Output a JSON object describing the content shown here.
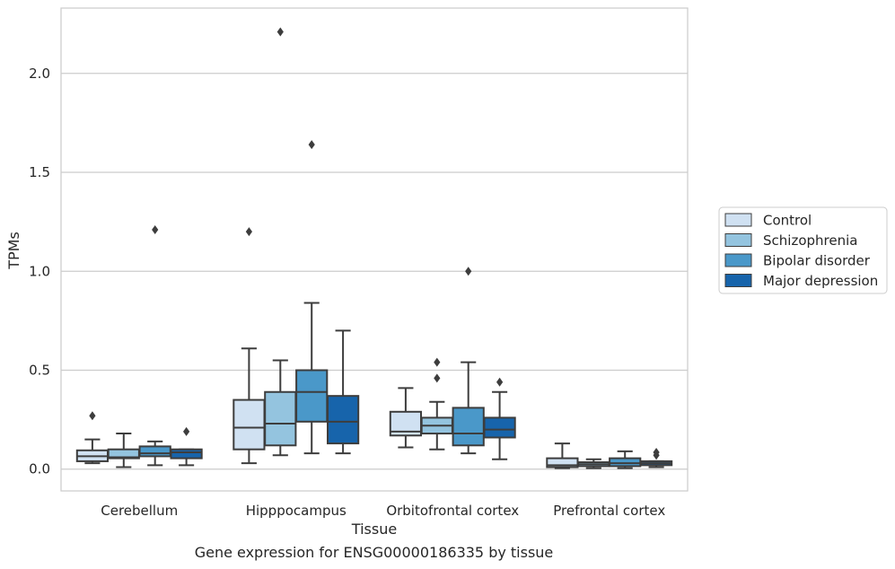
{
  "caption": "Gene expression for ENSG00000186335 by tissue",
  "chart_data": {
    "type": "box",
    "xlabel": "Tissue",
    "ylabel": "TPMs",
    "ylim": [
      -0.11,
      2.33
    ],
    "yticks": [
      0.0,
      0.5,
      1.0,
      1.5,
      2.0
    ],
    "ytick_labels": [
      "0.0",
      "0.5",
      "1.0",
      "1.5",
      "2.0"
    ],
    "grid": "horizontal",
    "legend_placement": "right",
    "categories": [
      "Cerebellum",
      "Hipppocampus",
      "Orbitofrontal cortex",
      "Prefrontal cortex"
    ],
    "series": [
      {
        "name": "Control",
        "color": "#d0e1f2",
        "boxes": [
          {
            "whislo": 0.03,
            "q1": 0.04,
            "med": 0.065,
            "q3": 0.095,
            "whishi": 0.15,
            "fliers": [
              0.27
            ]
          },
          {
            "whislo": 0.03,
            "q1": 0.1,
            "med": 0.21,
            "q3": 0.35,
            "whishi": 0.61,
            "fliers": [
              1.2
            ]
          },
          {
            "whislo": 0.11,
            "q1": 0.17,
            "med": 0.19,
            "q3": 0.29,
            "whishi": 0.41,
            "fliers": []
          },
          {
            "whislo": 0.005,
            "q1": 0.01,
            "med": 0.02,
            "q3": 0.055,
            "whishi": 0.13,
            "fliers": []
          }
        ]
      },
      {
        "name": "Schizophrenia",
        "color": "#94c4df",
        "boxes": [
          {
            "whislo": 0.01,
            "q1": 0.055,
            "med": 0.06,
            "q3": 0.1,
            "whishi": 0.18,
            "fliers": []
          },
          {
            "whislo": 0.07,
            "q1": 0.12,
            "med": 0.23,
            "q3": 0.39,
            "whishi": 0.55,
            "fliers": [
              2.21
            ]
          },
          {
            "whislo": 0.1,
            "q1": 0.18,
            "med": 0.22,
            "q3": 0.26,
            "whishi": 0.34,
            "fliers": [
              0.46,
              0.54
            ]
          },
          {
            "whislo": 0.005,
            "q1": 0.015,
            "med": 0.025,
            "q3": 0.035,
            "whishi": 0.05,
            "fliers": []
          }
        ]
      },
      {
        "name": "Bipolar disorder",
        "color": "#4a98c9",
        "boxes": [
          {
            "whislo": 0.02,
            "q1": 0.065,
            "med": 0.08,
            "q3": 0.115,
            "whishi": 0.14,
            "fliers": [
              1.21
            ]
          },
          {
            "whislo": 0.08,
            "q1": 0.24,
            "med": 0.39,
            "q3": 0.5,
            "whishi": 0.84,
            "fliers": [
              1.64
            ]
          },
          {
            "whislo": 0.08,
            "q1": 0.12,
            "med": 0.18,
            "q3": 0.31,
            "whishi": 0.54,
            "fliers": [
              1.0
            ]
          },
          {
            "whislo": 0.005,
            "q1": 0.015,
            "med": 0.03,
            "q3": 0.055,
            "whishi": 0.09,
            "fliers": []
          }
        ]
      },
      {
        "name": "Major depression",
        "color": "#1764ab",
        "boxes": [
          {
            "whislo": 0.02,
            "q1": 0.055,
            "med": 0.085,
            "q3": 0.1,
            "whishi": 0.1,
            "fliers": [
              0.19
            ]
          },
          {
            "whislo": 0.08,
            "q1": 0.13,
            "med": 0.24,
            "q3": 0.37,
            "whishi": 0.7,
            "fliers": []
          },
          {
            "whislo": 0.05,
            "q1": 0.16,
            "med": 0.2,
            "q3": 0.26,
            "whishi": 0.39,
            "fliers": [
              0.44
            ]
          },
          {
            "whislo": 0.01,
            "q1": 0.02,
            "med": 0.03,
            "q3": 0.04,
            "whishi": 0.04,
            "fliers": [
              0.07,
              0.085
            ]
          }
        ]
      }
    ]
  }
}
